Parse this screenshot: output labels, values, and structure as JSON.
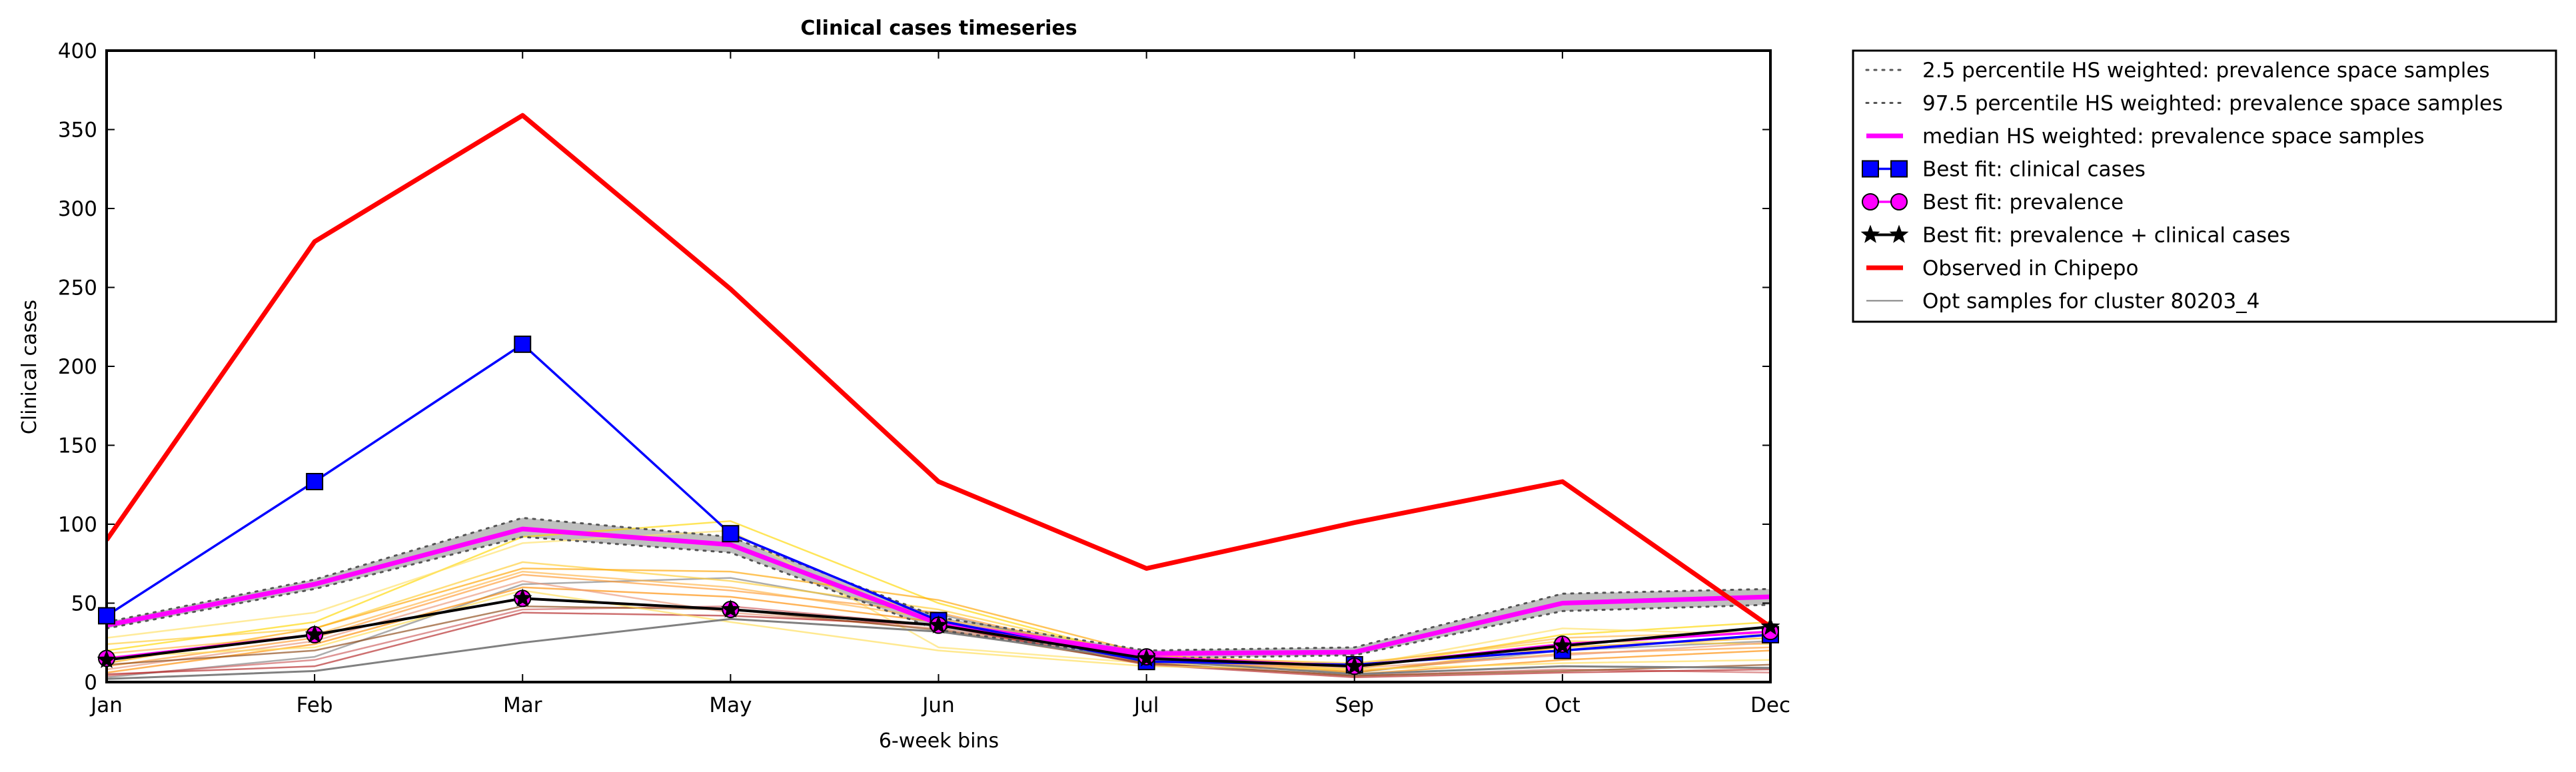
{
  "chart_data": {
    "type": "line",
    "title": "Clinical cases timeseries",
    "xlabel": "6-week bins",
    "ylabel": "Clinical cases",
    "categories": [
      "Jan",
      "Feb",
      "Mar",
      "May",
      "Jun",
      "Jul",
      "Sep",
      "Oct",
      "Dec"
    ],
    "ylim": [
      0,
      400
    ],
    "yticks": [
      0,
      50,
      100,
      150,
      200,
      250,
      300,
      350,
      400
    ],
    "grid": false,
    "legend_position": "outside-right",
    "band": {
      "lower": [
        34,
        59,
        92,
        82,
        33,
        15,
        17,
        45,
        49
      ],
      "upper": [
        38,
        65,
        104,
        92,
        41,
        20,
        22,
        56,
        59
      ]
    },
    "series": [
      {
        "name": "2.5 percentile HS weighted: prevalence space samples",
        "style": "dotted",
        "color": "#555555",
        "values": [
          34,
          59,
          92,
          82,
          33,
          15,
          17,
          45,
          49
        ]
      },
      {
        "name": "97.5 percentile HS weighted: prevalence space samples",
        "style": "dotted",
        "color": "#555555",
        "values": [
          38,
          65,
          104,
          92,
          41,
          20,
          22,
          56,
          59
        ]
      },
      {
        "name": "median HS weighted: prevalence space samples",
        "style": "solid",
        "color": "#ff00ff",
        "values": [
          36,
          62,
          97,
          87,
          37,
          18,
          19,
          50,
          54
        ]
      },
      {
        "name": "Best fit: clinical cases",
        "style": "solid",
        "color": "#0000ff",
        "marker": "square",
        "values": [
          42,
          127,
          214,
          94,
          39,
          13,
          11,
          20,
          30
        ]
      },
      {
        "name": "Best fit: prevalence",
        "style": "solid",
        "color": "#ff00ff",
        "marker": "circle",
        "values": [
          15,
          30,
          53,
          46,
          36,
          16,
          10,
          24,
          32
        ]
      },
      {
        "name": "Best fit: prevalence + clinical cases",
        "style": "solid",
        "color": "#000000",
        "marker": "star",
        "values": [
          14,
          30,
          53,
          46,
          36,
          15,
          10,
          23,
          35
        ]
      },
      {
        "name": "Observed in Chipepo",
        "style": "solid",
        "color": "#ff0000",
        "values": [
          90,
          279,
          359,
          249,
          127,
          72,
          101,
          127,
          35
        ]
      },
      {
        "name": "Opt samples for cluster 80203_4",
        "style": "solid",
        "color": "#808080",
        "values": [
          2,
          7,
          25,
          40,
          32,
          14,
          5,
          10,
          9
        ]
      }
    ],
    "samples": [
      {
        "color": "#808080",
        "values": [
          3,
          16,
          62,
          66,
          43,
          13,
          6,
          20,
          26
        ]
      },
      {
        "color": "#ffd700",
        "values": [
          20,
          38,
          92,
          102,
          50,
          15,
          8,
          30,
          38
        ]
      },
      {
        "color": "#ffe066",
        "values": [
          28,
          44,
          88,
          96,
          22,
          12,
          10,
          34,
          30
        ]
      },
      {
        "color": "#ffcc33",
        "values": [
          24,
          34,
          76,
          64,
          46,
          16,
          12,
          26,
          24
        ]
      },
      {
        "color": "#ffa500",
        "values": [
          12,
          34,
          72,
          70,
          52,
          18,
          6,
          22,
          28
        ]
      },
      {
        "color": "#ff9933",
        "values": [
          10,
          28,
          68,
          58,
          44,
          14,
          7,
          18,
          22
        ]
      },
      {
        "color": "#ff8c00",
        "values": [
          6,
          24,
          60,
          54,
          38,
          15,
          5,
          14,
          20
        ]
      },
      {
        "color": "#e9967a",
        "values": [
          8,
          26,
          64,
          44,
          34,
          13,
          9,
          17,
          25
        ]
      },
      {
        "color": "#cd5c5c",
        "values": [
          4,
          14,
          46,
          48,
          36,
          12,
          4,
          8,
          6
        ]
      },
      {
        "color": "#b22222",
        "values": [
          5,
          10,
          44,
          42,
          36,
          11,
          3,
          6,
          8
        ]
      },
      {
        "color": "#8b4513",
        "values": [
          11,
          20,
          48,
          46,
          33,
          12,
          4,
          7,
          11
        ]
      },
      {
        "color": "#ffdd55",
        "values": [
          16,
          22,
          58,
          38,
          20,
          10,
          8,
          12,
          14
        ]
      },
      {
        "color": "#ffb347",
        "values": [
          18,
          30,
          70,
          60,
          40,
          17,
          11,
          28,
          32
        ]
      }
    ]
  }
}
